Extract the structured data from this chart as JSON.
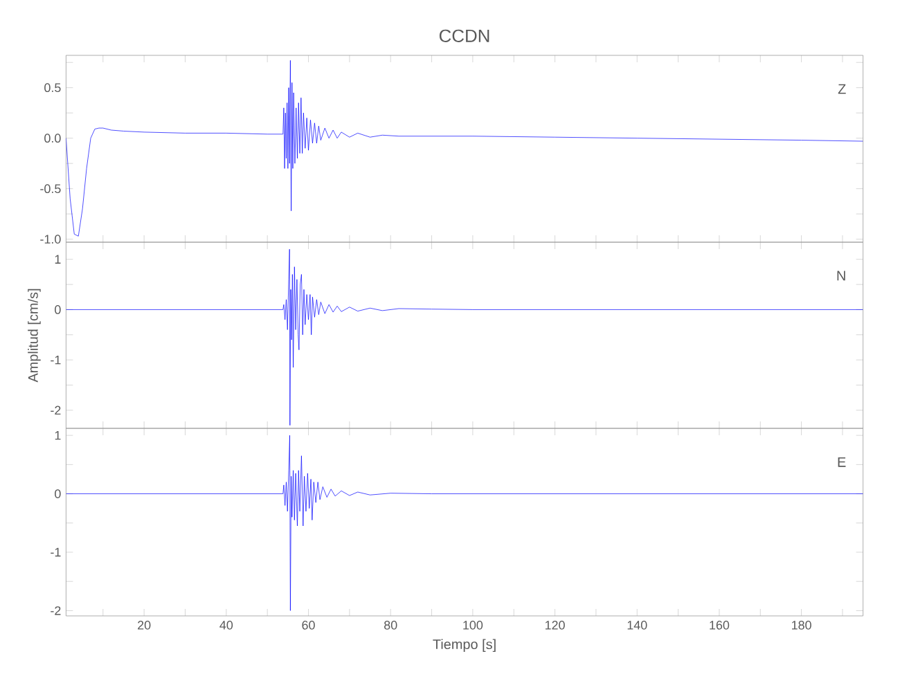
{
  "chart_data": [
    {
      "type": "line",
      "title": "CCDN",
      "annotations": [
        "Z"
      ],
      "tick_labels": "y",
      "xlim": [
        1,
        195
      ],
      "xticks": [
        {
          "value": 10,
          "label": null
        },
        {
          "value": 20,
          "label": null
        },
        {
          "value": 30,
          "label": null
        },
        {
          "value": 40,
          "label": null
        },
        {
          "value": 50,
          "label": null
        },
        {
          "value": 60,
          "label": null
        },
        {
          "value": 70,
          "label": null
        },
        {
          "value": 80,
          "label": null
        },
        {
          "value": 90,
          "label": null
        },
        {
          "value": 100,
          "label": null
        },
        {
          "value": 110,
          "label": null
        },
        {
          "value": 120,
          "label": null
        },
        {
          "value": 130,
          "label": null
        },
        {
          "value": 140,
          "label": null
        },
        {
          "value": 150,
          "label": null
        },
        {
          "value": 160,
          "label": null
        },
        {
          "value": 170,
          "label": null
        },
        {
          "value": 180,
          "label": null
        },
        {
          "value": 190,
          "label": null
        }
      ],
      "ylim": [
        -1.03,
        0.82
      ],
      "yticks": [
        {
          "value": -1.0,
          "label": "-1.0"
        },
        {
          "value": -0.75,
          "label": null
        },
        {
          "value": -0.5,
          "label": "-0.5"
        },
        {
          "value": -0.25,
          "label": null
        },
        {
          "value": 0.0,
          "label": "0.0"
        },
        {
          "value": 0.25,
          "label": null
        },
        {
          "value": 0.5,
          "label": "0.5"
        },
        {
          "value": 0.75,
          "label": null
        }
      ],
      "series": [
        {
          "color": "#0000ff",
          "x": [
            1,
            2,
            3,
            4,
            5,
            6,
            7,
            8,
            9,
            10,
            12,
            15,
            20,
            30,
            40,
            50,
            53.8,
            54.0,
            54.2,
            54.4,
            54.6,
            54.8,
            55.0,
            55.2,
            55.4,
            55.6,
            55.8,
            56.0,
            56.2,
            56.4,
            56.7,
            57.0,
            57.3,
            57.6,
            57.9,
            58.2,
            58.5,
            58.8,
            59.2,
            59.6,
            60.0,
            60.5,
            61,
            61.5,
            62,
            62.5,
            63,
            64,
            65,
            66,
            67,
            68,
            70,
            72,
            75,
            78,
            82,
            90,
            100,
            120,
            140,
            160,
            180,
            195
          ],
          "values": [
            0.0,
            -0.6,
            -0.95,
            -0.97,
            -0.7,
            -0.3,
            0.0,
            0.09,
            0.1,
            0.1,
            0.08,
            0.07,
            0.06,
            0.05,
            0.05,
            0.04,
            0.04,
            0.3,
            -0.3,
            0.25,
            -0.2,
            0.35,
            -0.3,
            0.5,
            -0.25,
            0.77,
            -0.72,
            0.55,
            -0.3,
            0.45,
            -0.25,
            0.3,
            -0.2,
            0.35,
            -0.15,
            0.4,
            -0.15,
            0.25,
            -0.1,
            0.2,
            -0.12,
            0.18,
            -0.05,
            0.15,
            -0.05,
            0.12,
            -0.02,
            0.1,
            0.0,
            0.08,
            0.0,
            0.06,
            0.01,
            0.05,
            0.01,
            0.03,
            0.02,
            0.02,
            0.02,
            0.01,
            0.0,
            -0.01,
            -0.02,
            -0.03
          ]
        }
      ]
    },
    {
      "type": "line",
      "ylabel": "Amplitud [cm/s]",
      "annotations": [
        "N"
      ],
      "tick_labels": "y",
      "xlim": [
        1,
        195
      ],
      "xticks": [
        {
          "value": 10,
          "label": null
        },
        {
          "value": 20,
          "label": null
        },
        {
          "value": 30,
          "label": null
        },
        {
          "value": 40,
          "label": null
        },
        {
          "value": 50,
          "label": null
        },
        {
          "value": 60,
          "label": null
        },
        {
          "value": 70,
          "label": null
        },
        {
          "value": 80,
          "label": null
        },
        {
          "value": 90,
          "label": null
        },
        {
          "value": 100,
          "label": null
        },
        {
          "value": 110,
          "label": null
        },
        {
          "value": 120,
          "label": null
        },
        {
          "value": 130,
          "label": null
        },
        {
          "value": 140,
          "label": null
        },
        {
          "value": 150,
          "label": null
        },
        {
          "value": 160,
          "label": null
        },
        {
          "value": 170,
          "label": null
        },
        {
          "value": 180,
          "label": null
        },
        {
          "value": 190,
          "label": null
        }
      ],
      "ylim": [
        -2.36,
        1.34
      ],
      "yticks": [
        {
          "value": -2,
          "label": "-2"
        },
        {
          "value": -1.5,
          "label": null
        },
        {
          "value": -1,
          "label": "-1"
        },
        {
          "value": -0.5,
          "label": null
        },
        0,
        {
          "value": 0.5,
          "label": null
        },
        1
      ],
      "series": [
        {
          "color": "#0000ff",
          "x": [
            1,
            20,
            40,
            53.8,
            54.0,
            54.3,
            54.6,
            54.9,
            55.2,
            55.4,
            55.5,
            55.7,
            55.9,
            56.1,
            56.3,
            56.6,
            56.9,
            57.2,
            57.5,
            57.7,
            58.0,
            58.3,
            58.6,
            58.9,
            59.2,
            59.6,
            60.0,
            60.4,
            60.7,
            61.0,
            61.5,
            62,
            62.5,
            63,
            64,
            65,
            66,
            67,
            68,
            70,
            72,
            75,
            78,
            82,
            90,
            100,
            195
          ],
          "values": [
            0,
            0,
            0,
            0,
            0.1,
            -0.2,
            0.2,
            -0.4,
            0.6,
            1.2,
            -2.3,
            0.4,
            -0.6,
            0.7,
            -1.15,
            0.85,
            -0.4,
            0.6,
            -0.5,
            -0.8,
            0.5,
            0.7,
            -0.5,
            0.4,
            -0.3,
            0.3,
            -0.2,
            0.3,
            -0.5,
            0.25,
            -0.15,
            0.2,
            -0.1,
            0.15,
            -0.08,
            0.1,
            -0.05,
            0.07,
            -0.04,
            0.05,
            -0.03,
            0.03,
            -0.02,
            0.02,
            0.01,
            0.0,
            0.0
          ]
        }
      ]
    },
    {
      "type": "line",
      "xlabel": "Tiempo [s]",
      "annotations": [
        "E"
      ],
      "xlim": [
        1,
        195
      ],
      "xticks": [
        {
          "value": 10,
          "label": null
        },
        20,
        {
          "value": 30,
          "label": null
        },
        40,
        {
          "value": 50,
          "label": null
        },
        60,
        {
          "value": 70,
          "label": null
        },
        80,
        {
          "value": 90,
          "label": null
        },
        100,
        {
          "value": 110,
          "label": null
        },
        120,
        {
          "value": 130,
          "label": null
        },
        140,
        {
          "value": 150,
          "label": null
        },
        160,
        {
          "value": 170,
          "label": null
        },
        180,
        {
          "value": 190,
          "label": null
        }
      ],
      "ylim": [
        -2.09,
        1.12
      ],
      "yticks": [
        {
          "value": -2,
          "label": "-2"
        },
        {
          "value": -1.5,
          "label": null
        },
        {
          "value": -1,
          "label": "-1"
        },
        {
          "value": -0.5,
          "label": null
        },
        0,
        {
          "value": 0.5,
          "label": null
        },
        1
      ],
      "series": [
        {
          "color": "#0000ff",
          "x": [
            1,
            20,
            40,
            53.8,
            54.0,
            54.3,
            54.6,
            54.9,
            55.2,
            55.45,
            55.6,
            55.8,
            56.0,
            56.3,
            56.6,
            56.9,
            57.3,
            57.6,
            57.9,
            58.3,
            58.7,
            59.0,
            59.4,
            59.8,
            60.2,
            60.6,
            60.9,
            61.3,
            61.8,
            62.3,
            62.8,
            63.5,
            64.5,
            65.5,
            66.5,
            68,
            70,
            72,
            75,
            80,
            90,
            195
          ],
          "values": [
            0,
            0,
            0,
            0,
            0.15,
            -0.2,
            0.2,
            -0.3,
            0.4,
            1.0,
            -2.0,
            0.3,
            -0.4,
            0.4,
            -0.45,
            0.35,
            -0.55,
            0.4,
            -0.3,
            0.65,
            -0.55,
            0.3,
            -0.3,
            0.35,
            -0.25,
            0.25,
            -0.45,
            0.2,
            -0.15,
            0.2,
            -0.1,
            0.12,
            -0.06,
            0.08,
            -0.04,
            0.05,
            -0.03,
            0.03,
            -0.02,
            0.01,
            0.0,
            0.0
          ]
        }
      ]
    }
  ]
}
